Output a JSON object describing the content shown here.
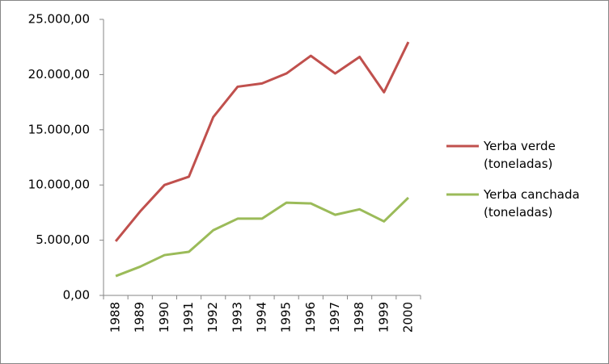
{
  "chart_data": {
    "type": "line",
    "categories": [
      "1988",
      "1989",
      "1990",
      "1991",
      "1992",
      "1993",
      "1994",
      "1995",
      "1996",
      "1997",
      "1998",
      "1999",
      "2000"
    ],
    "series": [
      {
        "name": "Yerba verde (toneladas)",
        "color": "#c0504d",
        "values": [
          4900,
          7600,
          10000,
          10750,
          16150,
          18900,
          19200,
          20100,
          21700,
          20100,
          21600,
          18400,
          22950
        ]
      },
      {
        "name": "Yerba canchada (toneladas)",
        "color": "#9bbb59",
        "values": [
          1750,
          2600,
          3650,
          3950,
          5900,
          6950,
          6950,
          8400,
          8330,
          7300,
          7800,
          6700,
          8850
        ]
      }
    ],
    "ylim": [
      0,
      25000
    ],
    "yticks": [
      {
        "value": 0,
        "label": "0,00"
      },
      {
        "value": 5000,
        "label": "5.000,00"
      },
      {
        "value": 10000,
        "label": "10.000,00"
      },
      {
        "value": 15000,
        "label": "15.000,00"
      },
      {
        "value": 20000,
        "label": "20.000,00"
      },
      {
        "value": 25000,
        "label": "25.000,00"
      }
    ],
    "legend": "right"
  }
}
